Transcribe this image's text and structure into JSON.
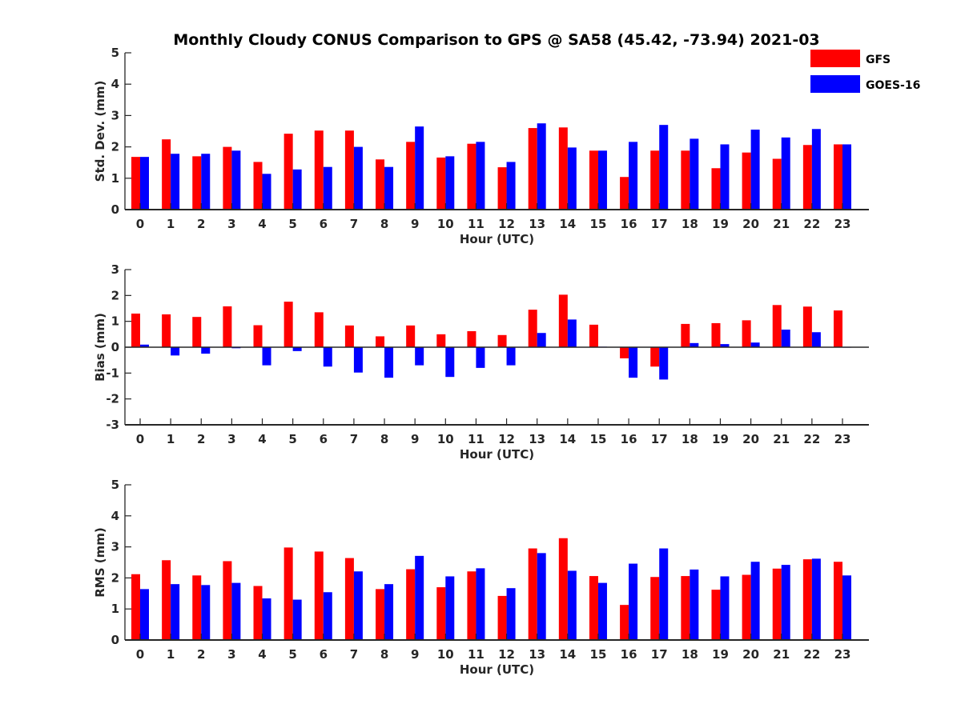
{
  "chart_data": {
    "title": "Monthly Cloudy CONUS Comparison to GPS @ SA58 (45.42, -73.94) 2021-03",
    "type": "bar",
    "legend": {
      "position": "top-right",
      "entries": [
        {
          "name": "GFS",
          "color": "#ff0000"
        },
        {
          "name": "GOES-16",
          "color": "#0000ff"
        }
      ]
    },
    "categories": [
      "0",
      "1",
      "2",
      "3",
      "4",
      "5",
      "6",
      "7",
      "8",
      "9",
      "10",
      "11",
      "12",
      "13",
      "14",
      "15",
      "16",
      "17",
      "18",
      "19",
      "20",
      "21",
      "22",
      "23"
    ],
    "panels": [
      {
        "ylabel": "Std. Dev. (mm)",
        "xlabel": "Hour (UTC)",
        "ylim": [
          0,
          5
        ],
        "yticks": [
          "0",
          "1",
          "2",
          "3",
          "4",
          "5"
        ],
        "series": [
          {
            "name": "GFS",
            "values": [
              1.68,
              2.24,
              1.7,
              2.0,
              1.52,
              2.42,
              2.52,
              2.52,
              1.6,
              2.16,
              1.66,
              2.1,
              1.35,
              2.6,
              2.62,
              1.88,
              1.04,
              1.88,
              1.88,
              1.32,
              1.82,
              1.62,
              2.06,
              2.08
            ]
          },
          {
            "name": "GOES-16",
            "values": [
              1.68,
              1.78,
              1.78,
              1.88,
              1.14,
              1.28,
              1.36,
              2.0,
              1.36,
              2.65,
              1.7,
              2.16,
              1.52,
              2.75,
              1.98,
              1.88,
              2.16,
              2.7,
              2.26,
              2.08,
              2.55,
              2.3,
              2.57,
              2.08
            ]
          }
        ]
      },
      {
        "ylabel": "Bias (mm)",
        "xlabel": "Hour (UTC)",
        "ylim": [
          -3,
          3
        ],
        "yticks": [
          "-3",
          "-2",
          "-1",
          "0",
          "1",
          "2",
          "3"
        ],
        "series": [
          {
            "name": "GFS",
            "values": [
              1.3,
              1.27,
              1.17,
              1.58,
              0.85,
              1.76,
              1.35,
              0.84,
              0.42,
              0.84,
              0.5,
              0.62,
              0.47,
              1.45,
              2.03,
              0.87,
              -0.43,
              -0.75,
              0.9,
              0.93,
              1.04,
              1.63,
              1.57,
              1.42
            ]
          },
          {
            "name": "GOES-16",
            "values": [
              0.1,
              -0.32,
              -0.25,
              -0.04,
              -0.7,
              -0.15,
              -0.75,
              -0.98,
              -1.18,
              -0.7,
              -1.15,
              -0.8,
              -0.7,
              0.55,
              1.07,
              0.02,
              -1.18,
              -1.25,
              0.16,
              0.12,
              0.18,
              0.68,
              0.58,
              0.0
            ]
          }
        ]
      },
      {
        "ylabel": "RMS (mm)",
        "xlabel": "Hour (UTC)",
        "ylim": [
          0,
          5
        ],
        "yticks": [
          "0",
          "1",
          "2",
          "3",
          "4",
          "5"
        ],
        "series": [
          {
            "name": "GFS",
            "values": [
              2.12,
              2.57,
              2.08,
              2.54,
              1.74,
              2.98,
              2.85,
              2.64,
              1.64,
              2.28,
              1.7,
              2.21,
              1.42,
              2.95,
              3.28,
              2.06,
              1.13,
              2.03,
              2.06,
              1.62,
              2.1,
              2.3,
              2.6,
              2.52
            ]
          },
          {
            "name": "GOES-16",
            "values": [
              1.64,
              1.8,
              1.77,
              1.84,
              1.34,
              1.3,
              1.54,
              2.21,
              1.8,
              2.71,
              2.05,
              2.31,
              1.67,
              2.8,
              2.23,
              1.84,
              2.46,
              2.95,
              2.27,
              2.05,
              2.52,
              2.42,
              2.62,
              2.08
            ]
          }
        ]
      }
    ]
  }
}
